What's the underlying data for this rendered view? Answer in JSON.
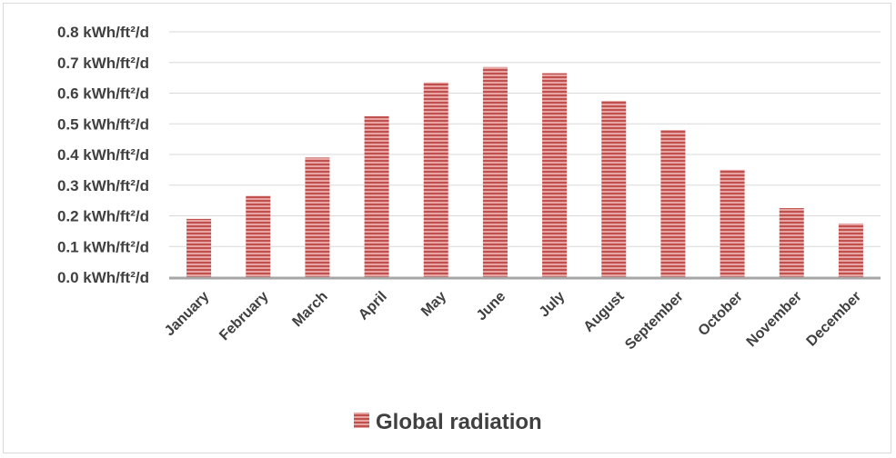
{
  "chart_data": {
    "type": "bar",
    "categories": [
      "January",
      "February",
      "March",
      "April",
      "May",
      "June",
      "July",
      "August",
      "September",
      "October",
      "November",
      "December"
    ],
    "series": [
      {
        "name": "Global radiation",
        "values": [
          0.19,
          0.265,
          0.39,
          0.525,
          0.635,
          0.685,
          0.665,
          0.575,
          0.48,
          0.35,
          0.225,
          0.175
        ]
      }
    ],
    "yticks": [
      0.0,
      0.1,
      0.2,
      0.3,
      0.4,
      0.5,
      0.6,
      0.7,
      0.8
    ],
    "ytick_labels": [
      "0.0 kWh/ft²/d",
      "0.1 kWh/ft²/d",
      "0.2 kWh/ft²/d",
      "0.3 kWh/ft²/d",
      "0.4 kWh/ft²/d",
      "0.5 kWh/ft²/d",
      "0.6 kWh/ft²/d",
      "0.7 kWh/ft²/d",
      "0.8 kWh/ft²/d"
    ],
    "ylim": [
      0,
      0.8
    ],
    "grid": true,
    "legend_position": "bottom",
    "colors": {
      "bar_fill": "#e8a3a3",
      "bar_stripe": "#c0504d",
      "grid": "#d9d9d9",
      "axis": "#a6a6a6",
      "text": "#404040"
    }
  }
}
